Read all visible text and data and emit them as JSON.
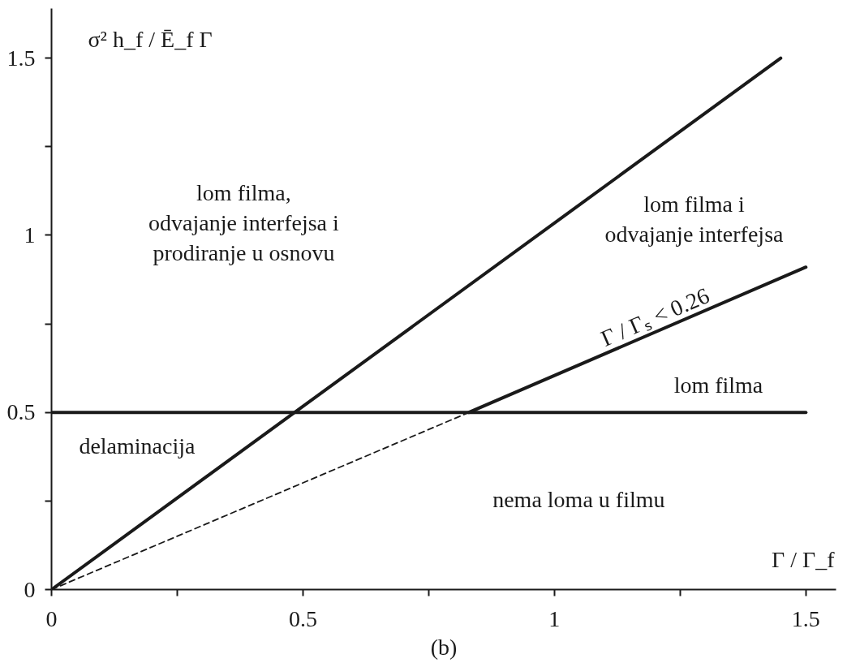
{
  "chart_data": {
    "type": "line",
    "xlabel": "Γ / Γ_f",
    "ylabel": "σ² h_f / Ē_f Γ",
    "xlim": [
      0,
      1.56
    ],
    "ylim": [
      0,
      1.64
    ],
    "xticks": [
      0,
      {
        "value": 0.25,
        "label": null
      },
      0.5,
      {
        "value": 0.75,
        "label": null
      },
      1,
      {
        "value": 1.25,
        "label": null
      },
      1.5
    ],
    "yticks": [
      0,
      {
        "value": 0.25,
        "label": null
      },
      0.5,
      {
        "value": 0.75,
        "label": null
      },
      1,
      {
        "value": 1.25,
        "label": null
      },
      1.5
    ],
    "series": [
      {
        "color": "#1a1a1a",
        "x": [
          0,
          1.45
        ],
        "values": [
          0,
          1.5
        ]
      },
      {
        "color": "#1a1a1a",
        "x": [
          0,
          1.5
        ],
        "values": [
          0.5,
          0.5
        ]
      },
      {
        "color": "#1a1a1a",
        "x": [
          0,
          0.83
        ],
        "values": [
          0,
          0.5
        ],
        "line_style": "dashed"
      },
      {
        "color": "#1a1a1a",
        "x": [
          0.83,
          1.5
        ],
        "values": [
          0.5,
          0.91
        ]
      }
    ],
    "annotations": [
      "lom filma,\nodvajanje interfejsa i\nprodiranje u osnovu",
      "lom filma i\nodvajanje interfejsa",
      {
        "text": "Γ / Γₛ < 0.26",
        "x": 1.21,
        "y": 0.73
      },
      "lom filma",
      "delaminacija",
      "nema loma u filmu",
      "(b)"
    ],
    "grid": false
  }
}
